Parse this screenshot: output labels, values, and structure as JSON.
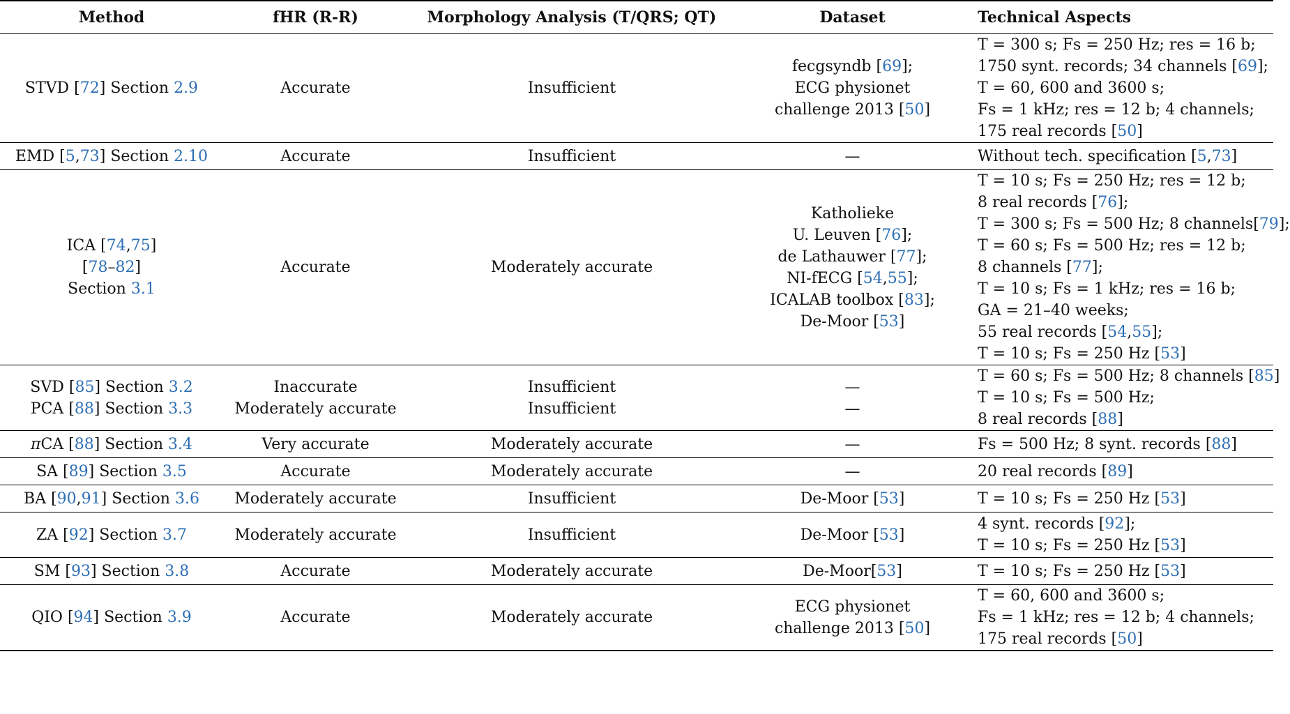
{
  "headers": [
    "Method",
    "fHR (R-R)",
    "Morphology Analysis (T/QRS; QT)",
    "Dataset",
    "Technical Aspects"
  ],
  "rows": [
    {
      "method": [
        [
          [
            "STVD [",
            0
          ],
          [
            "72",
            1
          ],
          [
            "] Section ",
            0
          ],
          [
            "2.9",
            1
          ]
        ]
      ],
      "fhr": [
        "Accurate"
      ],
      "morph": [
        "Insufficient"
      ],
      "dataset": [
        [
          [
            "fecgsyndb [",
            0
          ],
          [
            "69",
            1
          ],
          [
            "];",
            0
          ]
        ],
        [
          [
            "ECG physionet",
            0
          ]
        ],
        [
          [
            "challenge 2013 [",
            0
          ],
          [
            "50",
            1
          ],
          [
            "]",
            0
          ]
        ]
      ],
      "tech": [
        [
          [
            "T = 300 s; Fs = 250 Hz; res = 16 b;",
            0
          ]
        ],
        [
          [
            "1750 synt. records; 34 channels [",
            0
          ],
          [
            "69",
            1
          ],
          [
            "];",
            0
          ]
        ],
        [
          [
            "T = 60, 600 and 3600 s;",
            0
          ]
        ],
        [
          [
            "Fs = 1 kHz; res = 12 b; 4 channels;",
            0
          ]
        ],
        [
          [
            "175 real records [",
            0
          ],
          [
            "50",
            1
          ],
          [
            "]",
            0
          ]
        ]
      ]
    },
    {
      "method": [
        [
          [
            "EMD [",
            0
          ],
          [
            "5",
            1
          ],
          [
            ",",
            0
          ],
          [
            "73",
            1
          ],
          [
            "] Section ",
            0
          ],
          [
            "2.10",
            1
          ]
        ]
      ],
      "fhr": [
        "Accurate"
      ],
      "morph": [
        "Insufficient"
      ],
      "dataset": [
        [
          [
            "—",
            0
          ]
        ]
      ],
      "tech": [
        [
          [
            "Without tech. specification [",
            0
          ],
          [
            "5",
            1
          ],
          [
            ",",
            0
          ],
          [
            "73",
            1
          ],
          [
            "]",
            0
          ]
        ]
      ]
    },
    {
      "method": [
        [
          [
            "ICA [",
            0
          ],
          [
            "74",
            1
          ],
          [
            ",",
            0
          ],
          [
            "75",
            1
          ],
          [
            "]",
            0
          ]
        ],
        [
          [
            "[",
            0
          ],
          [
            "78",
            1
          ],
          [
            "–",
            0
          ],
          [
            "82",
            1
          ],
          [
            "]",
            0
          ]
        ],
        [
          [
            "Section ",
            0
          ],
          [
            "3.1",
            1
          ]
        ]
      ],
      "fhr": [
        "Accurate"
      ],
      "morph": [
        "Moderately accurate"
      ],
      "dataset": [
        [
          [
            "Katholieke",
            0
          ]
        ],
        [
          [
            "U. Leuven [",
            0
          ],
          [
            "76",
            1
          ],
          [
            "];",
            0
          ]
        ],
        [
          [
            "de Lathauwer [",
            0
          ],
          [
            "77",
            1
          ],
          [
            "];",
            0
          ]
        ],
        [
          [
            "NI-fECG [",
            0
          ],
          [
            "54",
            1
          ],
          [
            ",",
            0
          ],
          [
            "55",
            1
          ],
          [
            "];",
            0
          ]
        ],
        [
          [
            "ICALAB toolbox [",
            0
          ],
          [
            "83",
            1
          ],
          [
            "];",
            0
          ]
        ],
        [
          [
            "De-Moor [",
            0
          ],
          [
            "53",
            1
          ],
          [
            "]",
            0
          ]
        ]
      ],
      "tech": [
        [
          [
            "T = 10 s; Fs = 250 Hz; res = 12 b;",
            0
          ]
        ],
        [
          [
            "8 real records [",
            0
          ],
          [
            "76",
            1
          ],
          [
            "];",
            0
          ]
        ],
        [
          [
            "T = 300 s; Fs = 500 Hz; 8 channels[",
            0
          ],
          [
            "79",
            1
          ],
          [
            "];",
            0
          ]
        ],
        [
          [
            "T = 60 s; Fs = 500 Hz; res = 12 b;",
            0
          ]
        ],
        [
          [
            "8 channels [",
            0
          ],
          [
            "77",
            1
          ],
          [
            "];",
            0
          ]
        ],
        [
          [
            "T = 10 s; Fs = 1 kHz; res = 16 b;",
            0
          ]
        ],
        [
          [
            "GA = 21–40 weeks;",
            0
          ]
        ],
        [
          [
            "55 real records [",
            0
          ],
          [
            "54",
            1
          ],
          [
            ",",
            0
          ],
          [
            "55",
            1
          ],
          [
            "];",
            0
          ]
        ],
        [
          [
            "T = 10 s; Fs = 250 Hz [",
            0
          ],
          [
            "53",
            1
          ],
          [
            "]",
            0
          ]
        ]
      ]
    },
    {
      "method": [
        [
          [
            "SVD [",
            0
          ],
          [
            "85",
            1
          ],
          [
            "] Section ",
            0
          ],
          [
            "3.2",
            1
          ]
        ],
        [
          [
            "PCA [",
            0
          ],
          [
            "88",
            1
          ],
          [
            "] Section ",
            0
          ],
          [
            "3.3",
            1
          ]
        ]
      ],
      "fhr": [
        "Inaccurate",
        "Moderately accurate"
      ],
      "morph": [
        "Insufficient",
        "Insufficient"
      ],
      "dataset": [
        [
          [
            "—",
            0
          ]
        ],
        [
          [
            "—",
            0
          ]
        ]
      ],
      "tech": [
        [
          [
            "T = 60 s; Fs = 500 Hz; 8 channels [",
            0
          ],
          [
            "85",
            1
          ],
          [
            "]",
            0
          ]
        ],
        [
          [
            "T = 10 s; Fs = 500 Hz;",
            0
          ]
        ],
        [
          [
            "8 real records [",
            0
          ],
          [
            "88",
            1
          ],
          [
            "]",
            0
          ]
        ]
      ]
    },
    {
      "method": [
        [
          [
            "π",
            2
          ],
          [
            "CA [",
            0
          ],
          [
            "88",
            1
          ],
          [
            "] Section ",
            0
          ],
          [
            "3.4",
            1
          ]
        ]
      ],
      "fhr": [
        "Very accurate"
      ],
      "morph": [
        "Moderately accurate"
      ],
      "dataset": [
        [
          [
            "—",
            0
          ]
        ]
      ],
      "tech": [
        [
          [
            "Fs = 500 Hz; 8 synt. records [",
            0
          ],
          [
            "88",
            1
          ],
          [
            "]",
            0
          ]
        ]
      ]
    },
    {
      "method": [
        [
          [
            "SA [",
            0
          ],
          [
            "89",
            1
          ],
          [
            "] Section ",
            0
          ],
          [
            "3.5",
            1
          ]
        ]
      ],
      "fhr": [
        "Accurate"
      ],
      "morph": [
        "Moderately accurate"
      ],
      "dataset": [
        [
          [
            "—",
            0
          ]
        ]
      ],
      "tech": [
        [
          [
            "20 real records [",
            0
          ],
          [
            "89",
            1
          ],
          [
            "]",
            0
          ]
        ]
      ]
    },
    {
      "method": [
        [
          [
            "BA [",
            0
          ],
          [
            "90",
            1
          ],
          [
            ",",
            0
          ],
          [
            "91",
            1
          ],
          [
            "] Section ",
            0
          ],
          [
            "3.6",
            1
          ]
        ]
      ],
      "fhr": [
        "Moderately accurate"
      ],
      "morph": [
        "Insufficient"
      ],
      "dataset": [
        [
          [
            "De-Moor [",
            0
          ],
          [
            "53",
            1
          ],
          [
            "]",
            0
          ]
        ]
      ],
      "tech": [
        [
          [
            "T = 10 s; Fs = 250 Hz [",
            0
          ],
          [
            "53",
            1
          ],
          [
            "]",
            0
          ]
        ]
      ]
    },
    {
      "method": [
        [
          [
            "ZA [",
            0
          ],
          [
            "92",
            1
          ],
          [
            "] Section ",
            0
          ],
          [
            "3.7",
            1
          ]
        ]
      ],
      "fhr": [
        "Moderately accurate"
      ],
      "morph": [
        "Insufficient"
      ],
      "dataset": [
        [
          [
            "De-Moor [",
            0
          ],
          [
            "53",
            1
          ],
          [
            "]",
            0
          ]
        ]
      ],
      "tech": [
        [
          [
            "4 synt. records [",
            0
          ],
          [
            "92",
            1
          ],
          [
            "];",
            0
          ]
        ],
        [
          [
            "T = 10 s; Fs = 250 Hz [",
            0
          ],
          [
            "53",
            1
          ],
          [
            "]",
            0
          ]
        ]
      ]
    },
    {
      "method": [
        [
          [
            "SM [",
            0
          ],
          [
            "93",
            1
          ],
          [
            "] Section ",
            0
          ],
          [
            "3.8",
            1
          ]
        ]
      ],
      "fhr": [
        "Accurate"
      ],
      "morph": [
        "Moderately accurate"
      ],
      "dataset": [
        [
          [
            "De-Moor[",
            0
          ],
          [
            "53",
            1
          ],
          [
            "]",
            0
          ]
        ]
      ],
      "tech": [
        [
          [
            "T = 10 s; Fs = 250 Hz [",
            0
          ],
          [
            "53",
            1
          ],
          [
            "]",
            0
          ]
        ]
      ]
    },
    {
      "method": [
        [
          [
            "QIO [",
            0
          ],
          [
            "94",
            1
          ],
          [
            "] Section ",
            0
          ],
          [
            "3.9",
            1
          ]
        ]
      ],
      "fhr": [
        "Accurate"
      ],
      "morph": [
        "Moderately accurate"
      ],
      "dataset": [
        [
          [
            "ECG physionet",
            0
          ]
        ],
        [
          [
            "challenge 2013 [",
            0
          ],
          [
            "50",
            1
          ],
          [
            "]",
            0
          ]
        ]
      ],
      "tech": [
        [
          [
            "T = 60, 600 and 3600 s;",
            0
          ]
        ],
        [
          [
            "Fs = 1 kHz; res = 12 b; 4 channels;",
            0
          ]
        ],
        [
          [
            "175 real records [",
            0
          ],
          [
            "50",
            1
          ],
          [
            "]",
            0
          ]
        ]
      ]
    }
  ]
}
